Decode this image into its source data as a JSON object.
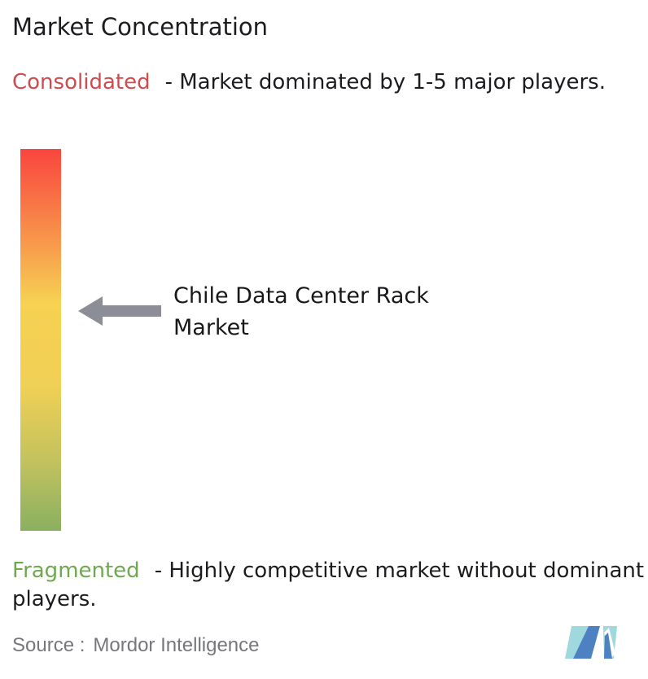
{
  "title": "Market Concentration",
  "consolidated": {
    "term": "Consolidated",
    "description": "- Market dominated by 1-5 major players."
  },
  "fragmented": {
    "term": "Fragmented",
    "description": "- Highly competitive market without dominant players."
  },
  "market_label": "Chile Data Center Rack Market",
  "source": {
    "prefix": "Source :",
    "name": "Mordor Intelligence"
  },
  "colors": {
    "consolidated_red": "#d04a4e",
    "fragmented_green": "#6fa84e",
    "gradient_top_red": "#f9453e",
    "gradient_mid_yellow": "#f6d152",
    "gradient_bottom_green": "#8ab061",
    "arrow_gray": "#8b8e96",
    "text_dark": "#1b1c1f",
    "source_gray": "#76777b",
    "logo_blue": "#4d81c2",
    "logo_teal": "#9fd9de"
  },
  "icons": {
    "arrow": "left-arrow-icon",
    "logo": "mordor-intelligence-logo"
  },
  "chart_data": {
    "type": "gauge",
    "orientation": "vertical",
    "title": "Market Concentration",
    "scale_top": {
      "label": "Consolidated",
      "meaning": "Market dominated by 1-5 major players.",
      "color": "#f9453e"
    },
    "scale_bottom": {
      "label": "Fragmented",
      "meaning": "Highly competitive market without dominant players.",
      "color": "#8ab061"
    },
    "marker": {
      "label": "Chile Data Center Rack Market",
      "position_pct_from_top": 42.4
    },
    "legend_position": "none",
    "grid": false
  }
}
